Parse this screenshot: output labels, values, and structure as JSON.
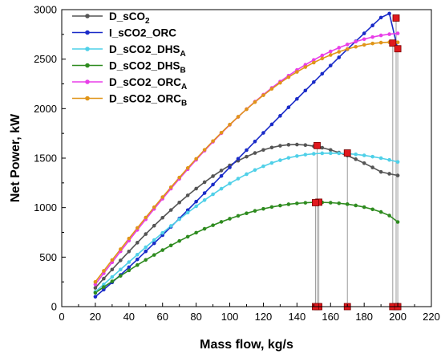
{
  "chart_data": {
    "type": "line",
    "xlabel": "Mass flow, kg/s",
    "ylabel": "Net Power, kW",
    "xlim": [
      0,
      220
    ],
    "ylim": [
      0,
      3000
    ],
    "xticks": [
      0,
      20,
      40,
      60,
      80,
      100,
      120,
      140,
      160,
      180,
      200,
      220
    ],
    "yticks": [
      0,
      500,
      1000,
      1500,
      2000,
      2500,
      3000
    ],
    "grid": false,
    "legend_position": "top-left",
    "x": [
      20,
      25,
      30,
      35,
      40,
      45,
      50,
      55,
      60,
      65,
      70,
      75,
      80,
      85,
      90,
      95,
      100,
      105,
      110,
      115,
      120,
      125,
      130,
      135,
      140,
      145,
      150,
      155,
      160,
      165,
      170,
      175,
      180,
      185,
      190,
      195,
      200
    ],
    "series": [
      {
        "name": "D_sCO2",
        "name_parts": [
          {
            "t": "D_sCO"
          },
          {
            "t": "2",
            "s": "sub"
          }
        ],
        "color": "#555555",
        "values": [
          190,
          283,
          375,
          467,
          557,
          646,
          733,
          817,
          898,
          976,
          1052,
          1124,
          1192,
          1257,
          1318,
          1375,
          1427,
          1474,
          1515,
          1552,
          1583,
          1607,
          1625,
          1635,
          1637,
          1632,
          1621,
          1605,
          1583,
          1556,
          1525,
          1489,
          1449,
          1406,
          1361,
          1342,
          1325
        ]
      },
      {
        "name": "I_sCO2_ORC",
        "name_parts": [
          {
            "t": "I_sCO2_ORC"
          }
        ],
        "color": "#1a2bc8",
        "values": [
          100,
          172,
          245,
          320,
          398,
          477,
          558,
          640,
          722,
          806,
          890,
          975,
          1061,
          1147,
          1233,
          1320,
          1407,
          1494,
          1581,
          1668,
          1755,
          1841,
          1927,
          2013,
          2098,
          2183,
          2268,
          2352,
          2435,
          2518,
          2600,
          2680,
          2760,
          2840,
          2920,
          2960,
          2600
        ]
      },
      {
        "name": "D_sCO2_DHSA",
        "name_parts": [
          {
            "t": "D_sCO2_DHS"
          },
          {
            "t": "A",
            "s": "sub"
          }
        ],
        "color": "#4fd0e8",
        "values": [
          150,
          225,
          300,
          375,
          450,
          525,
          600,
          673,
          745,
          815,
          883,
          950,
          1014,
          1076,
          1135,
          1191,
          1244,
          1293,
          1338,
          1380,
          1418,
          1451,
          1479,
          1503,
          1521,
          1535,
          1544,
          1549,
          1550,
          1549,
          1545,
          1538,
          1528,
          1515,
          1500,
          1482,
          1462
        ]
      },
      {
        "name": "D_sCO2_DHSB",
        "name_parts": [
          {
            "t": "D_sCO2_DHS"
          },
          {
            "t": "B",
            "s": "sub"
          }
        ],
        "color": "#2e8b1f",
        "values": [
          140,
          198,
          255,
          311,
          366,
          420,
          472,
          522,
          571,
          618,
          663,
          706,
          747,
          786,
          822,
          856,
          888,
          917,
          943,
          967,
          988,
          1006,
          1021,
          1034,
          1043,
          1049,
          1053,
          1053,
          1050,
          1044,
          1035,
          1022,
          1005,
          983,
          956,
          920,
          855
        ]
      },
      {
        "name": "D_sCO2_ORCA",
        "name_parts": [
          {
            "t": "D_sCO2_ORC"
          },
          {
            "t": "A",
            "s": "sub"
          }
        ],
        "color": "#e83ee8",
        "values": [
          225,
          337,
          448,
          558,
          667,
          775,
          882,
          987,
          1090,
          1192,
          1291,
          1388,
          1483,
          1575,
          1665,
          1752,
          1836,
          1917,
          1995,
          2070,
          2141,
          2209,
          2273,
          2333,
          2390,
          2443,
          2492,
          2537,
          2578,
          2615,
          2648,
          2677,
          2702,
          2723,
          2740,
          2752,
          2760
        ]
      },
      {
        "name": "D_sCO2_ORCB",
        "name_parts": [
          {
            "t": "D_sCO2_ORC"
          },
          {
            "t": "B",
            "s": "sub"
          }
        ],
        "color": "#e09518",
        "values": [
          250,
          361,
          471,
          580,
          688,
          795,
          900,
          1004,
          1106,
          1206,
          1304,
          1400,
          1493,
          1584,
          1672,
          1757,
          1839,
          1918,
          1994,
          2066,
          2135,
          2200,
          2261,
          2318,
          2371,
          2420,
          2465,
          2506,
          2542,
          2574,
          2602,
          2625,
          2644,
          2658,
          2667,
          2671,
          2670
        ]
      }
    ],
    "max_points": [
      {
        "x": 152,
        "y": 1627
      },
      {
        "x": 170,
        "y": 1552
      },
      {
        "x": 153,
        "y": 1055
      },
      {
        "x": 199,
        "y": 2915
      },
      {
        "x": 197,
        "y": 2662
      },
      {
        "x": 200,
        "y": 2605
      },
      {
        "x": 151,
        "y": 1050
      }
    ],
    "marker_color": "#e0191e"
  }
}
